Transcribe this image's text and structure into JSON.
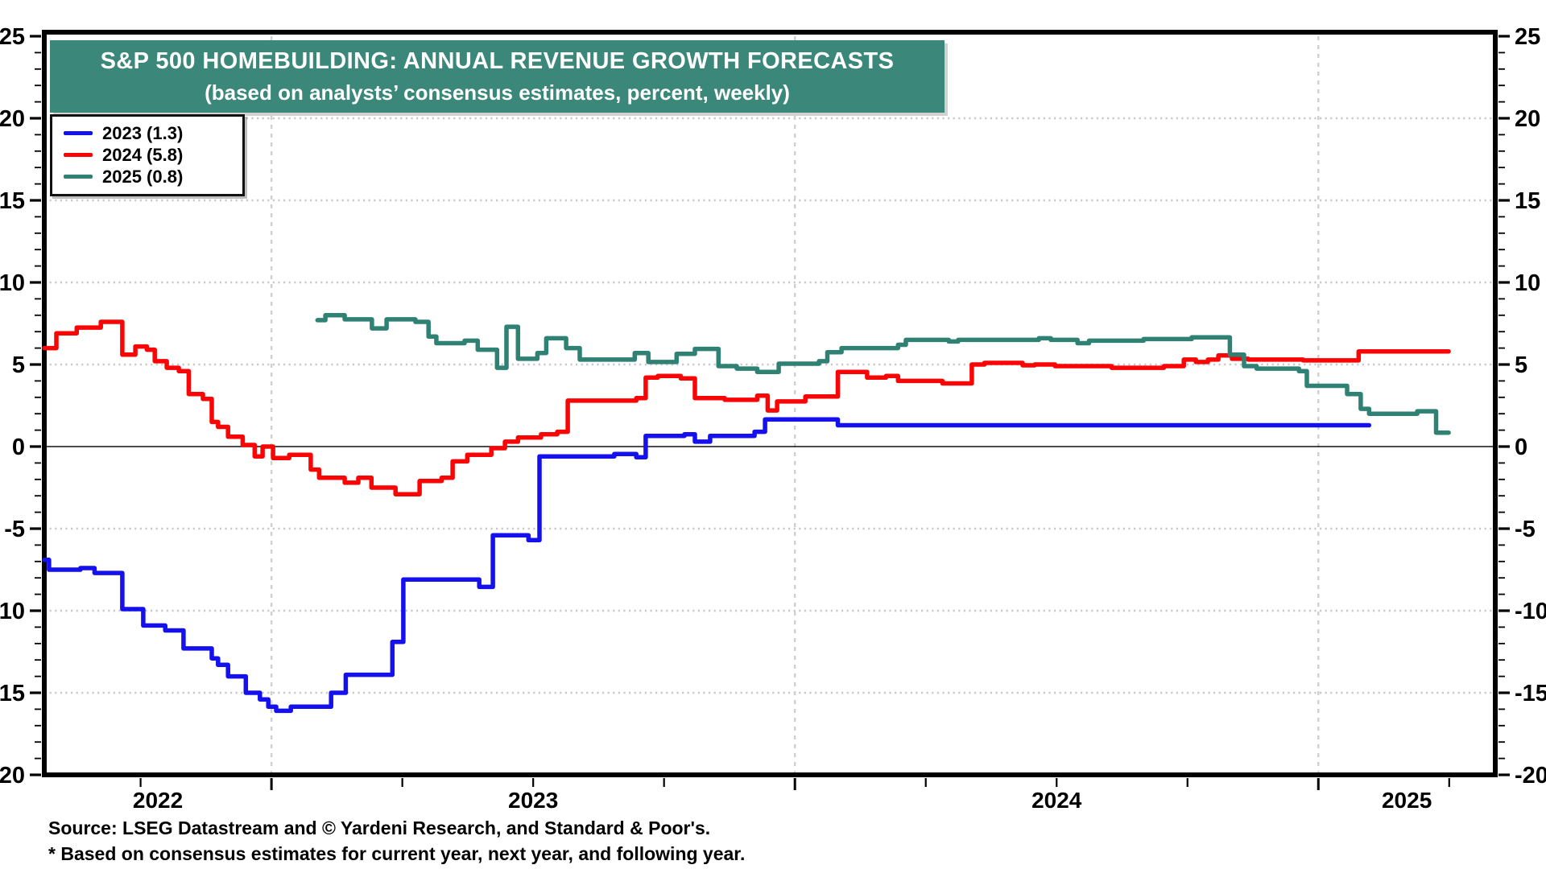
{
  "banner": {
    "title": "S&P 500 HOMEBUILDING: ANNUAL REVENUE GROWTH FORECASTS",
    "subtitle": "(based on analysts’ consensus estimates, percent, weekly)",
    "bg_color": "#3B8779"
  },
  "legend": {
    "items": [
      {
        "label": "2023 (1.3)",
        "color": "#1411EE"
      },
      {
        "label": "2024 (5.8)",
        "color": "#FA0505"
      },
      {
        "label": "2025 (0.8)",
        "color": "#2F8173"
      }
    ]
  },
  "footer": {
    "source": "Source: LSEG Datastream and © Yardeni Research, and Standard & Poor's.",
    "footnote": "* Based on consensus estimates for current year, next year, and following year."
  },
  "chart_data": {
    "type": "line",
    "step": true,
    "title": "S&P 500 HOMEBUILDING: ANNUAL REVENUE GROWTH FORECASTS",
    "subtitle": "(based on analysts’ consensus estimates, percent, weekly)",
    "x_domain": [
      2022.566,
      2025.338
    ],
    "ylim": [
      -20,
      25
    ],
    "y_ticks": [
      -20,
      -15,
      -10,
      -5,
      0,
      5,
      10,
      15,
      20,
      25
    ],
    "y_minor_step": 1,
    "x_year_labels": [
      "2022",
      "2023",
      "2024",
      "2025"
    ],
    "year_gridlines": [
      2023,
      2024,
      2025
    ],
    "quarter_tick_step": 0.25,
    "grid_color": "#c8c8c8",
    "zero_line_value": 0,
    "series": [
      {
        "name": "2023",
        "legend": "2023 (1.3)",
        "final_value": 1.3,
        "color": "#1411EE",
        "end": 2025.097,
        "points": [
          [
            2022.566,
            -6.9
          ],
          [
            2022.575,
            -7.5
          ],
          [
            2022.635,
            -7.4
          ],
          [
            2022.662,
            -7.7
          ],
          [
            2022.715,
            -9.9
          ],
          [
            2022.755,
            -10.9
          ],
          [
            2022.797,
            -11.2
          ],
          [
            2022.832,
            -12.3
          ],
          [
            2022.886,
            -12.9
          ],
          [
            2022.898,
            -13.3
          ],
          [
            2022.917,
            -14.0
          ],
          [
            2022.951,
            -15.0
          ],
          [
            2022.978,
            -15.4
          ],
          [
            2022.994,
            -15.85
          ],
          [
            2023.009,
            -16.1
          ],
          [
            2023.037,
            -15.85
          ],
          [
            2023.114,
            -15.0
          ],
          [
            2023.142,
            -13.9
          ],
          [
            2023.231,
            -11.9
          ],
          [
            2023.252,
            -8.1
          ],
          [
            2023.397,
            -8.55
          ],
          [
            2023.423,
            -5.4
          ],
          [
            2023.491,
            -5.7
          ],
          [
            2023.512,
            -0.6
          ],
          [
            2023.655,
            -0.45
          ],
          [
            2023.697,
            -0.65
          ],
          [
            2023.715,
            0.65
          ],
          [
            2023.789,
            0.75
          ],
          [
            2023.809,
            0.3
          ],
          [
            2023.838,
            0.65
          ],
          [
            2023.923,
            0.9
          ],
          [
            2023.943,
            1.65
          ],
          [
            2024.082,
            1.3
          ]
        ]
      },
      {
        "name": "2024",
        "legend": "2024 (5.8)",
        "final_value": 5.8,
        "color": "#FA0505",
        "end": 2025.249,
        "points": [
          [
            2022.566,
            6.0
          ],
          [
            2022.589,
            6.9
          ],
          [
            2022.628,
            7.25
          ],
          [
            2022.674,
            7.6
          ],
          [
            2022.715,
            5.6
          ],
          [
            2022.74,
            6.1
          ],
          [
            2022.762,
            5.9
          ],
          [
            2022.777,
            5.2
          ],
          [
            2022.8,
            4.8
          ],
          [
            2022.823,
            4.6
          ],
          [
            2022.842,
            3.2
          ],
          [
            2022.869,
            2.9
          ],
          [
            2022.886,
            1.5
          ],
          [
            2022.898,
            1.2
          ],
          [
            2022.917,
            0.6
          ],
          [
            2022.945,
            0.1
          ],
          [
            2022.968,
            -0.6
          ],
          [
            2022.983,
            0.0
          ],
          [
            2023.003,
            -0.7
          ],
          [
            2023.034,
            -0.5
          ],
          [
            2023.075,
            -1.4
          ],
          [
            2023.091,
            -1.9
          ],
          [
            2023.14,
            -2.2
          ],
          [
            2023.166,
            -1.9
          ],
          [
            2023.191,
            -2.5
          ],
          [
            2023.237,
            -2.9
          ],
          [
            2023.283,
            -2.1
          ],
          [
            2023.325,
            -1.9
          ],
          [
            2023.346,
            -0.9
          ],
          [
            2023.374,
            -0.5
          ],
          [
            2023.42,
            -0.1
          ],
          [
            2023.446,
            0.3
          ],
          [
            2023.471,
            0.55
          ],
          [
            2023.515,
            0.75
          ],
          [
            2023.546,
            0.9
          ],
          [
            2023.566,
            2.8
          ],
          [
            2023.697,
            2.95
          ],
          [
            2023.715,
            4.2
          ],
          [
            2023.738,
            4.3
          ],
          [
            2023.782,
            4.15
          ],
          [
            2023.809,
            2.95
          ],
          [
            2023.866,
            2.85
          ],
          [
            2023.928,
            3.1
          ],
          [
            2023.948,
            2.2
          ],
          [
            2023.966,
            2.75
          ],
          [
            2024.02,
            3.05
          ],
          [
            2024.082,
            4.55
          ],
          [
            2024.138,
            4.2
          ],
          [
            2024.174,
            4.3
          ],
          [
            2024.197,
            4.0
          ],
          [
            2024.282,
            3.85
          ],
          [
            2024.338,
            5.0
          ],
          [
            2024.362,
            5.1
          ],
          [
            2024.435,
            4.95
          ],
          [
            2024.458,
            5.0
          ],
          [
            2024.497,
            4.9
          ],
          [
            2024.605,
            4.8
          ],
          [
            2024.705,
            4.9
          ],
          [
            2024.743,
            5.3
          ],
          [
            2024.766,
            5.15
          ],
          [
            2024.789,
            5.3
          ],
          [
            2024.809,
            5.55
          ],
          [
            2024.835,
            5.35
          ],
          [
            2024.866,
            5.3
          ],
          [
            2024.971,
            5.25
          ],
          [
            2025.077,
            5.8
          ]
        ]
      },
      {
        "name": "2025",
        "legend": "2025 (0.8)",
        "final_value": 0.8,
        "color": "#2F8173",
        "end": 2025.249,
        "points": [
          [
            2023.088,
            7.7
          ],
          [
            2023.103,
            8.0
          ],
          [
            2023.14,
            7.75
          ],
          [
            2023.192,
            7.2
          ],
          [
            2023.22,
            7.75
          ],
          [
            2023.275,
            7.6
          ],
          [
            2023.3,
            6.7
          ],
          [
            2023.315,
            6.3
          ],
          [
            2023.369,
            6.45
          ],
          [
            2023.394,
            5.9
          ],
          [
            2023.431,
            4.8
          ],
          [
            2023.449,
            7.3
          ],
          [
            2023.471,
            5.35
          ],
          [
            2023.508,
            5.7
          ],
          [
            2023.525,
            6.6
          ],
          [
            2023.563,
            6.0
          ],
          [
            2023.589,
            5.3
          ],
          [
            2023.694,
            5.7
          ],
          [
            2023.72,
            5.15
          ],
          [
            2023.774,
            5.65
          ],
          [
            2023.809,
            5.95
          ],
          [
            2023.854,
            4.9
          ],
          [
            2023.889,
            4.75
          ],
          [
            2023.928,
            4.55
          ],
          [
            2023.969,
            5.05
          ],
          [
            2024.046,
            5.2
          ],
          [
            2024.062,
            5.75
          ],
          [
            2024.089,
            6.0
          ],
          [
            2024.197,
            6.2
          ],
          [
            2024.212,
            6.5
          ],
          [
            2024.294,
            6.4
          ],
          [
            2024.312,
            6.5
          ],
          [
            2024.466,
            6.6
          ],
          [
            2024.489,
            6.5
          ],
          [
            2024.54,
            6.3
          ],
          [
            2024.562,
            6.45
          ],
          [
            2024.666,
            6.55
          ],
          [
            2024.758,
            6.65
          ],
          [
            2024.831,
            5.6
          ],
          [
            2024.858,
            4.9
          ],
          [
            2024.882,
            4.75
          ],
          [
            2024.963,
            4.6
          ],
          [
            2024.978,
            3.7
          ],
          [
            2025.055,
            3.2
          ],
          [
            2025.081,
            2.3
          ],
          [
            2025.097,
            2.0
          ],
          [
            2025.189,
            2.15
          ],
          [
            2025.225,
            0.85
          ]
        ]
      }
    ]
  }
}
